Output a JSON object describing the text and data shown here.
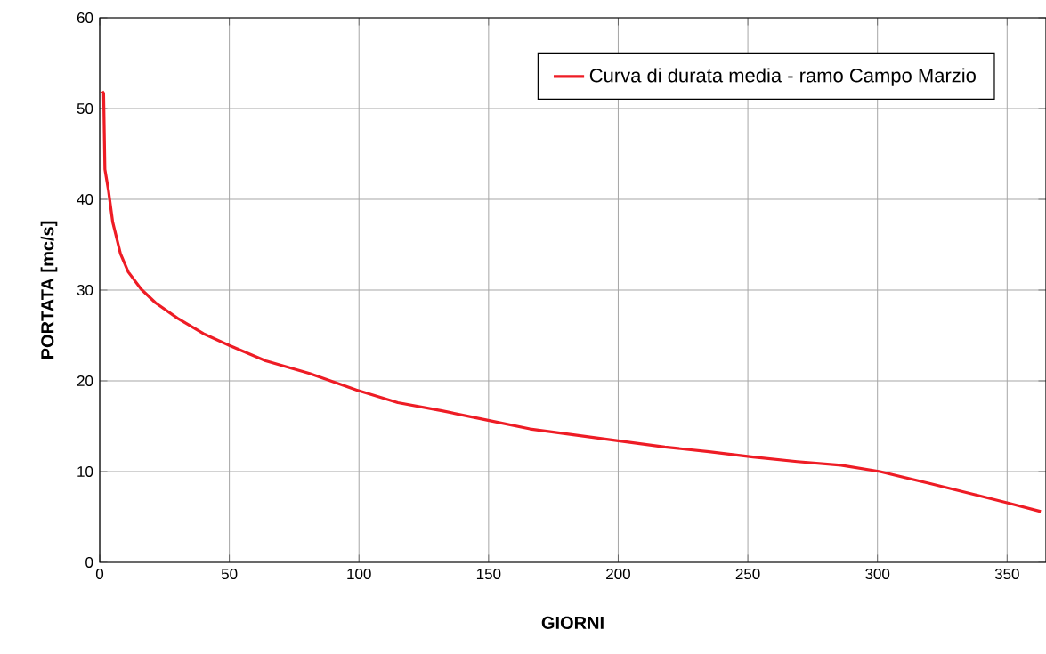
{
  "chart_data": {
    "type": "line",
    "xlabel": "GIORNI",
    "ylabel": "PORTATA [mc/s]",
    "series": [
      {
        "name": "Curva di durata media - ramo Campo Marzio",
        "color": "#ee1c25",
        "x": [
          1,
          1.5,
          2,
          3.4,
          5,
          8,
          11,
          16,
          21.5,
          30,
          40,
          50,
          64,
          81,
          99,
          115,
          132,
          149,
          166,
          184,
          200,
          218,
          235,
          252,
          269,
          286,
          301,
          320,
          337,
          351,
          363
        ],
        "values": [
          51.9,
          51.7,
          43.3,
          40.9,
          37.5,
          34,
          32,
          30.1,
          28.6,
          26.9,
          25.2,
          23.9,
          22.2,
          20.8,
          19,
          17.6,
          16.7,
          15.7,
          14.7,
          14.0,
          13.4,
          12.7,
          12.2,
          11.6,
          11.1,
          10.7,
          10.0,
          8.7,
          7.5,
          6.5,
          5.6
        ]
      }
    ],
    "xlim": [
      0,
      365
    ],
    "xticks": [
      0,
      50,
      100,
      150,
      200,
      250,
      300,
      350
    ],
    "ylim": [
      0,
      60
    ],
    "yticks": [
      0,
      10,
      20,
      30,
      40,
      50,
      60
    ],
    "grid": true,
    "legend": "top right",
    "marker": "none",
    "line_style": "solid"
  }
}
